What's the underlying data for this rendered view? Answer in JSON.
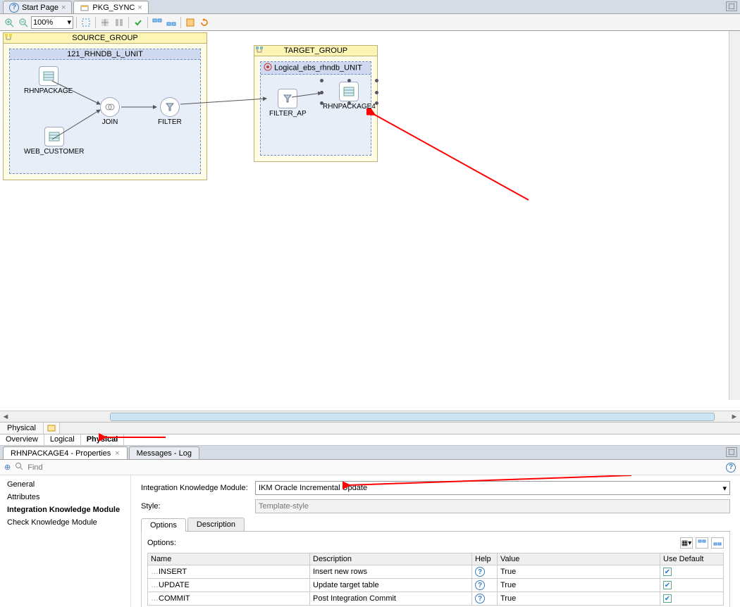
{
  "tabs": {
    "start": "Start Page",
    "pkg": "PKG_SYNC"
  },
  "toolbar": {
    "zoom": "100%"
  },
  "source_group": {
    "title": "SOURCE_GROUP",
    "color": "#fcf5b5",
    "unit": {
      "title": "121_RHNDB_L_UNIT",
      "nodes": {
        "rhnpackage": "RHNPACKAGE",
        "web_customer": "WEB_CUSTOMER",
        "join": "JOIN",
        "filter": "FILTER"
      }
    }
  },
  "target_group": {
    "title": "TARGET_GROUP",
    "unit": {
      "title": "Logical_ebs_rhndb_UNIT",
      "nodes": {
        "filter_ap": "FILTER_AP",
        "rhnpackage4": "RHNPACKAGE4"
      }
    }
  },
  "mid_tabs1": {
    "physical": "Physical"
  },
  "mid_tabs2": {
    "overview": "Overview",
    "logical": "Logical",
    "physical": "Physical"
  },
  "panel_tabs": {
    "props": "RHNPACKAGE4 - Properties",
    "log": "Messages - Log"
  },
  "find": {
    "placeholder": "Find"
  },
  "side": {
    "general": "General",
    "attributes": "Attributes",
    "ikm": "Integration Knowledge Module",
    "ckm": "Check Knowledge Module"
  },
  "form": {
    "ikm_label": "Integration Knowledge Module:",
    "ikm_value": "IKM Oracle Incremental Update",
    "style_label": "Style:",
    "style_placeholder": "Template-style"
  },
  "subtabs": {
    "options": "Options",
    "description": "Description"
  },
  "options": {
    "header": "Options:",
    "cols": {
      "name": "Name",
      "desc": "Description",
      "help": "Help",
      "value": "Value",
      "usedef": "Use Default"
    },
    "rows": [
      {
        "name": "INSERT",
        "desc": "Insert new rows",
        "value": "True"
      },
      {
        "name": "UPDATE",
        "desc": "Update target table",
        "value": "True"
      },
      {
        "name": "COMMIT",
        "desc": "Post Integration Commit",
        "value": "True"
      }
    ]
  },
  "arrows": {
    "color": "#ff0000"
  }
}
